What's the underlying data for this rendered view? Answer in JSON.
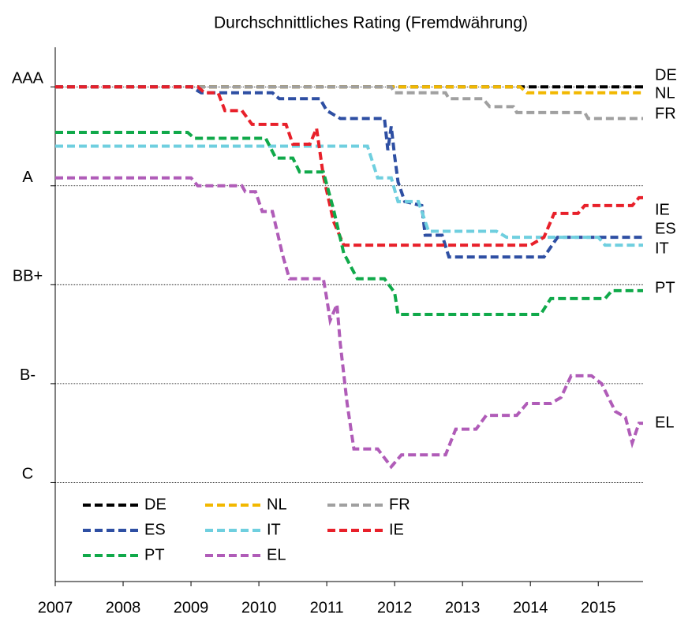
{
  "chart_data": {
    "type": "line",
    "title": "Durchschnittliches Rating (Fremdwährung)",
    "xlim": [
      2007,
      2015.66
    ],
    "xticks": [
      2007,
      2008,
      2009,
      2010,
      2011,
      2012,
      2013,
      2014,
      2015
    ],
    "ylim": [
      -5,
      22
    ],
    "yticks": [
      {
        "value": 20,
        "label": "AAA"
      },
      {
        "value": 15,
        "label": "A"
      },
      {
        "value": 10,
        "label": "BB+"
      },
      {
        "value": 5,
        "label": "B-"
      },
      {
        "value": 0,
        "label": "C"
      }
    ],
    "grid": true,
    "legend": "lower left",
    "series": [
      {
        "name": "DE",
        "color": "#000000",
        "x": [
          2007,
          2015.66
        ],
        "values": [
          20,
          20
        ]
      },
      {
        "name": "NL",
        "color": "#f2b800",
        "x": [
          2007,
          2013.85,
          2013.95,
          2015.66
        ],
        "values": [
          20,
          20,
          19.7,
          19.7
        ]
      },
      {
        "name": "FR",
        "color": "#a0a0a0",
        "x": [
          2007,
          2011.95,
          2012.0,
          2012.75,
          2012.8,
          2013.3,
          2013.4,
          2013.75,
          2013.8,
          2014.8,
          2014.85,
          2015.66
        ],
        "values": [
          20,
          20,
          19.7,
          19.7,
          19.4,
          19.4,
          19.0,
          19.0,
          18.7,
          18.7,
          18.4,
          18.4
        ]
      },
      {
        "name": "ES",
        "color": "#2e4fa3",
        "x": [
          2007,
          2009.0,
          2009.15,
          2010.2,
          2010.3,
          2010.9,
          2011.0,
          2011.2,
          2011.85,
          2011.9,
          2011.95,
          2012.0,
          2012.05,
          2012.15,
          2012.4,
          2012.45,
          2012.7,
          2012.8,
          2014.2,
          2014.4,
          2015.66
        ],
        "values": [
          20,
          20,
          19.7,
          19.7,
          19.4,
          19.4,
          18.8,
          18.4,
          18.4,
          16.8,
          18,
          16.5,
          15.2,
          14.2,
          14.0,
          12.5,
          12.5,
          11.4,
          11.4,
          12.4,
          12.4
        ]
      },
      {
        "name": "IT",
        "color": "#6fcfdf",
        "x": [
          2007,
          2011.6,
          2011.75,
          2011.95,
          2012.05,
          2012.35,
          2012.5,
          2013.5,
          2013.65,
          2015.0,
          2015.1,
          2015.66
        ],
        "values": [
          17,
          17,
          15.4,
          15.4,
          14.2,
          14.2,
          12.7,
          12.7,
          12.4,
          12.4,
          12.0,
          12.0
        ]
      },
      {
        "name": "IE",
        "color": "#e8202a",
        "x": [
          2007,
          2009.1,
          2009.2,
          2009.4,
          2009.5,
          2009.75,
          2009.9,
          2010.4,
          2010.5,
          2010.75,
          2010.85,
          2010.95,
          2011.1,
          2011.25,
          2014.0,
          2014.2,
          2014.35,
          2014.7,
          2014.8,
          2015.5,
          2015.6,
          2015.66
        ],
        "values": [
          20,
          20,
          19.7,
          19.7,
          18.8,
          18.8,
          18.1,
          18.1,
          17.1,
          17.1,
          17.9,
          15.5,
          13.2,
          12.0,
          12.0,
          12.4,
          13.6,
          13.6,
          14.0,
          14.0,
          14.4,
          14.4
        ]
      },
      {
        "name": "PT",
        "color": "#10a94a",
        "x": [
          2007,
          2008.95,
          2009.05,
          2010.1,
          2010.25,
          2010.5,
          2010.6,
          2010.95,
          2011.1,
          2011.25,
          2011.45,
          2011.85,
          2012.0,
          2012.05,
          2014.15,
          2014.3,
          2015.1,
          2015.2,
          2015.66
        ],
        "values": [
          17.7,
          17.7,
          17.4,
          17.4,
          16.4,
          16.4,
          15.7,
          15.7,
          13.8,
          11.6,
          10.3,
          10.3,
          9.6,
          8.5,
          8.5,
          9.3,
          9.3,
          9.7,
          9.7
        ]
      },
      {
        "name": "EL",
        "color": "#b05cb8",
        "x": [
          2007,
          2009.0,
          2009.1,
          2009.75,
          2009.8,
          2009.95,
          2010.05,
          2010.2,
          2010.35,
          2010.45,
          2010.95,
          2011.0,
          2011.05,
          2011.15,
          2011.2,
          2011.3,
          2011.4,
          2011.75,
          2011.95,
          2012.1,
          2012.75,
          2012.9,
          2013.2,
          2013.35,
          2013.8,
          2013.95,
          2014.3,
          2014.45,
          2014.6,
          2014.9,
          2015.05,
          2015.25,
          2015.4,
          2015.5,
          2015.6,
          2015.66
        ],
        "values": [
          15.4,
          15.4,
          15.0,
          15.0,
          14.7,
          14.7,
          13.7,
          13.7,
          11.5,
          10.3,
          10.3,
          9.3,
          8.2,
          9.0,
          7.0,
          4.0,
          1.7,
          1.7,
          0.8,
          1.4,
          1.4,
          2.7,
          2.7,
          3.4,
          3.4,
          4.0,
          4.0,
          4.3,
          5.4,
          5.4,
          5.0,
          3.6,
          3.3,
          2.0,
          3.0,
          3.0
        ]
      }
    ]
  }
}
